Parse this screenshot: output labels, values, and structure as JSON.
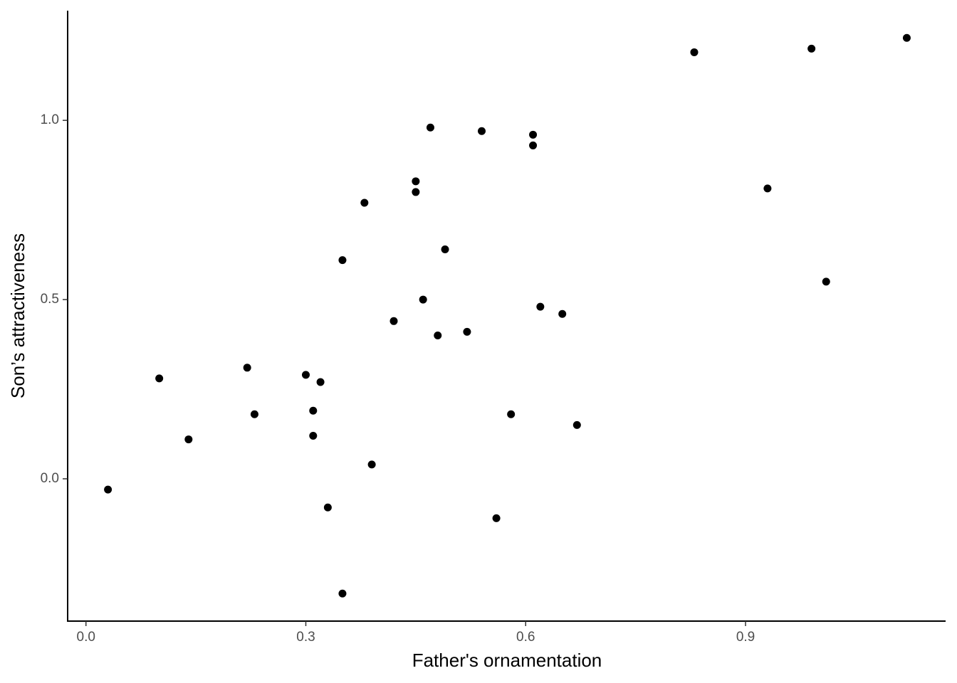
{
  "chart_data": {
    "type": "scatter",
    "x_label": "Father's ornamentation",
    "y_label": "Son’s attractiveness",
    "x": [
      0.03,
      0.1,
      0.14,
      0.22,
      0.23,
      0.3,
      0.31,
      0.31,
      0.32,
      0.33,
      0.35,
      0.35,
      0.38,
      0.39,
      0.42,
      0.45,
      0.45,
      0.46,
      0.47,
      0.48,
      0.49,
      0.52,
      0.54,
      0.56,
      0.58,
      0.61,
      0.61,
      0.62,
      0.65,
      0.67,
      0.83,
      0.93,
      0.99,
      1.01,
      1.12
    ],
    "y": [
      -0.03,
      0.28,
      0.11,
      0.31,
      0.18,
      0.29,
      0.19,
      0.12,
      0.27,
      -0.08,
      0.61,
      -0.32,
      0.77,
      0.04,
      0.44,
      0.83,
      0.8,
      0.5,
      0.98,
      0.4,
      0.64,
      0.41,
      0.97,
      -0.11,
      0.18,
      0.96,
      0.93,
      0.48,
      0.46,
      0.15,
      1.19,
      0.81,
      1.2,
      0.55,
      1.23
    ],
    "color": "#000000",
    "xlim": [
      -0.025,
      1.173
    ],
    "ylim": [
      -0.397,
      1.306
    ],
    "xticks": [
      {
        "value": 0,
        "label": "0.0"
      },
      0.3,
      0.6,
      0.9
    ],
    "yticks": [
      {
        "value": 0,
        "label": "0.0"
      },
      0.5,
      {
        "value": 1,
        "label": "1.0"
      }
    ],
    "grid": false
  }
}
